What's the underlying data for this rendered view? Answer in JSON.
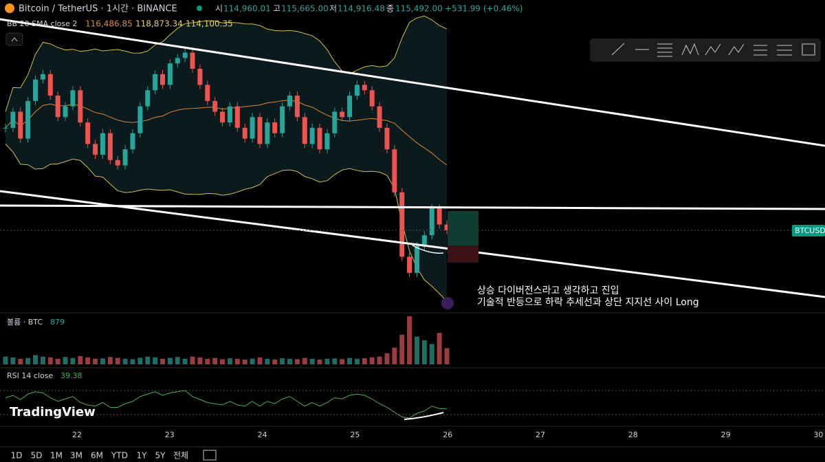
{
  "header": {
    "symbol": "Bitcoin / TetherUS · 1시간 · BINANCE",
    "o_label": "시",
    "open": "114,960.01",
    "h_label": "고",
    "high": "115,665.00",
    "l_label": "저",
    "low": "114,916.48",
    "c_label": "종",
    "close": "115,492.00",
    "change": "+531.99 (+0.46%)"
  },
  "bb": {
    "label": "BB 20 SMA close 2",
    "basis": "116,486.85",
    "upper": "118,873.34",
    "lower": "114,100.35"
  },
  "price_tag": "BTCUSD",
  "closes": [
    117400,
    117700,
    117200,
    117900,
    118300,
    118400,
    118000,
    117600,
    117800,
    118100,
    117500,
    117100,
    116900,
    117300,
    116800,
    116700,
    117000,
    117300,
    117800,
    118100,
    118400,
    118200,
    118600,
    118700,
    118800,
    118500,
    118200,
    117900,
    117700,
    117500,
    117800,
    117400,
    117200,
    117600,
    117100,
    117500,
    117300,
    117800,
    118000,
    117600,
    117100,
    117400,
    117000,
    117300,
    117700,
    117600,
    118000,
    118200,
    118100,
    117800,
    117400,
    117000,
    116200,
    115000,
    114700,
    115200,
    115400,
    115900,
    115600,
    115492
  ],
  "volume": {
    "label": "볼륨 · BTC",
    "last": "879",
    "values": [
      420,
      380,
      300,
      350,
      500,
      420,
      380,
      300,
      400,
      350,
      450,
      380,
      300,
      320,
      400,
      350,
      300,
      280,
      360,
      420,
      380,
      300,
      350,
      400,
      300,
      420,
      380,
      300,
      350,
      280,
      330,
      300,
      260,
      310,
      380,
      300,
      260,
      330,
      300,
      280,
      350,
      300,
      260,
      300,
      320,
      280,
      350,
      300,
      330,
      380,
      420,
      600,
      900,
      1600,
      2600,
      1500,
      1300,
      1100,
      1700,
      879
    ]
  },
  "rsi": {
    "label": "RSI 14 close",
    "last": "39.38",
    "values": [
      58,
      62,
      55,
      64,
      68,
      66,
      58,
      52,
      56,
      60,
      50,
      46,
      44,
      50,
      42,
      42,
      48,
      52,
      60,
      64,
      68,
      62,
      66,
      68,
      70,
      60,
      55,
      50,
      48,
      46,
      52,
      46,
      44,
      52,
      44,
      52,
      48,
      56,
      60,
      52,
      44,
      50,
      44,
      50,
      58,
      56,
      62,
      64,
      62,
      56,
      48,
      42,
      34,
      26,
      24,
      32,
      36,
      44,
      40,
      39.38
    ]
  },
  "annotation": [
    "상승 다이버전스라고 생각하고 진입",
    "기술적 반등으로 하락 추세선과 상단 지지선 사이 Long"
  ],
  "dates": [
    "22",
    "23",
    "24",
    "25",
    "26",
    "27",
    "28",
    "29",
    "30"
  ],
  "logo": "TradingView",
  "ranges": [
    "1D",
    "5D",
    "1M",
    "3M",
    "6M",
    "YTD",
    "1Y",
    "5Y",
    "전체"
  ]
}
